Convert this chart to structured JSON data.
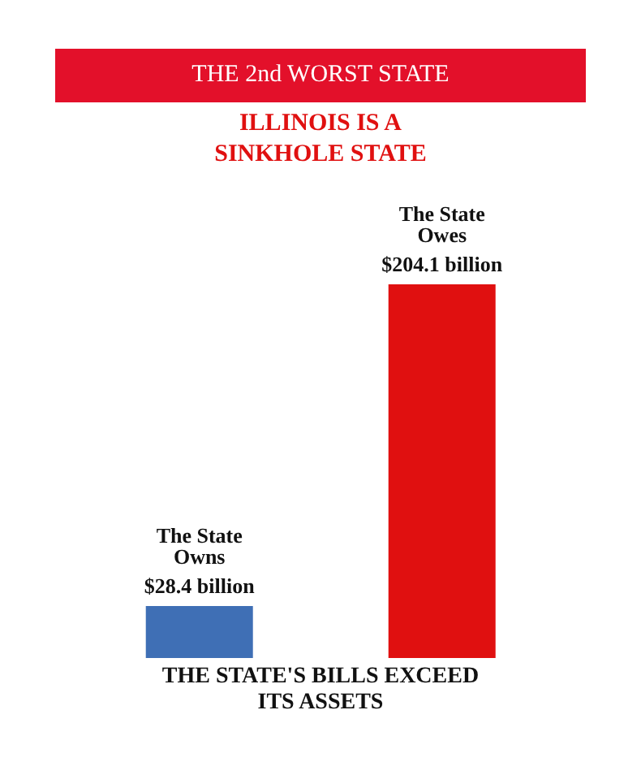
{
  "chart_data": {
    "type": "bar",
    "title": "THE 2nd WORST STATE",
    "subtitle": "ILLINOIS IS A SINKHOLE STATE",
    "categories": [
      "The State Owns",
      "The State Owes"
    ],
    "values": [
      28.4,
      204.1
    ],
    "colors": [
      "#3f6fb5",
      "#e01010"
    ],
    "value_labels": [
      "$28.4 billion",
      "$204.1 billion"
    ],
    "annotations": [
      "THE STATE'S BILLS EXCEED ITS ASSETS"
    ]
  }
}
